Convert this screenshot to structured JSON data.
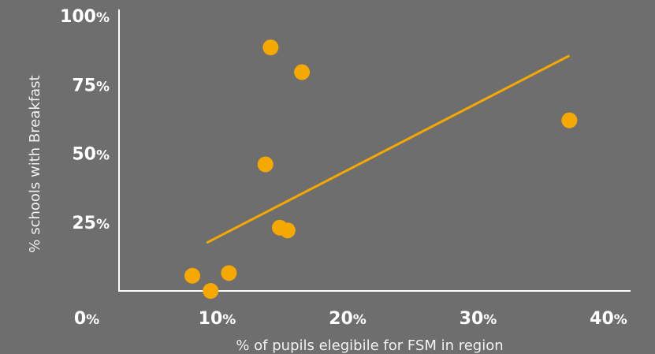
{
  "chart_data": {
    "type": "scatter",
    "title": "",
    "xlabel": "% of pupils elegibile for FSM in region",
    "ylabel": "% schools with Breakfast",
    "xlim": [
      0,
      40
    ],
    "ylim": [
      0,
      100
    ],
    "x_ticks": [
      {
        "value": 0,
        "number": "0",
        "unit": "%"
      },
      {
        "value": 10,
        "number": "10",
        "unit": "%"
      },
      {
        "value": 20,
        "number": "20",
        "unit": "%"
      },
      {
        "value": 30,
        "number": "30",
        "unit": "%"
      },
      {
        "value": 40,
        "number": "40",
        "unit": "%"
      }
    ],
    "y_ticks": [
      {
        "value": 25,
        "number": "25",
        "unit": "%"
      },
      {
        "value": 50,
        "number": "50",
        "unit": "%"
      },
      {
        "value": 75,
        "number": "75",
        "unit": "%"
      },
      {
        "value": 100,
        "number": "100",
        "unit": "%"
      }
    ],
    "points": [
      {
        "x": 8.1,
        "y": 5.5
      },
      {
        "x": 9.5,
        "y": 0.0
      },
      {
        "x": 10.9,
        "y": 6.5
      },
      {
        "x": 13.7,
        "y": 46.0
      },
      {
        "x": 14.1,
        "y": 88.5
      },
      {
        "x": 14.8,
        "y": 23.0
      },
      {
        "x": 15.4,
        "y": 22.0
      },
      {
        "x": 16.5,
        "y": 79.5
      },
      {
        "x": 37.0,
        "y": 62.0
      }
    ],
    "trendline": {
      "x": [
        9.2,
        37.0
      ],
      "y": [
        17.5,
        85.5
      ]
    },
    "grid": false,
    "legend": "none"
  },
  "colors": {
    "background": "#6e6e6e",
    "marker": "#f5a800",
    "trendline": "#f5a800",
    "axis": "#ffffff",
    "text": "#ffffff"
  }
}
